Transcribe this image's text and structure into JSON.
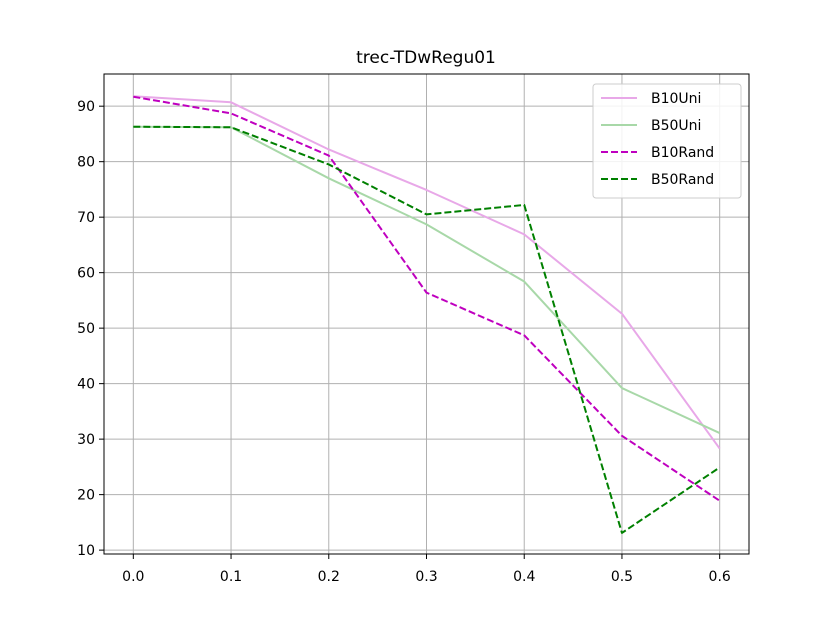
{
  "chart_data": {
    "type": "line",
    "title": "trec-TDwRegu01",
    "xlabel": "",
    "ylabel": "",
    "x": [
      0.0,
      0.1,
      0.2,
      0.3,
      0.4,
      0.5,
      0.6
    ],
    "x_tick_labels": [
      "0.0",
      "0.1",
      "0.2",
      "0.3",
      "0.4",
      "0.5",
      "0.6"
    ],
    "y_ticks": [
      10,
      20,
      30,
      40,
      50,
      60,
      70,
      80,
      90
    ],
    "y_tick_labels": [
      "10",
      "20",
      "30",
      "40",
      "50",
      "60",
      "70",
      "80",
      "90"
    ],
    "xlim": [
      -0.03,
      0.63
    ],
    "ylim": [
      9.3,
      95.8
    ],
    "grid": true,
    "legend_position": "top-right",
    "series": [
      {
        "name": "B10Uni",
        "values": [
          91.8,
          90.7,
          82.2,
          74.9,
          66.9,
          52.6,
          28.3
        ],
        "color": "#e8a8e8",
        "dash": "solid"
      },
      {
        "name": "B50Uni",
        "values": [
          86.3,
          86.2,
          77.0,
          68.7,
          58.4,
          39.2,
          31.1
        ],
        "color": "#a8d8a8",
        "dash": "solid"
      },
      {
        "name": "B10Rand",
        "values": [
          91.7,
          88.7,
          81.1,
          56.4,
          48.7,
          30.6,
          18.9
        ],
        "color": "#bf00bf",
        "dash": "dashed"
      },
      {
        "name": "B50Rand",
        "values": [
          86.3,
          86.2,
          79.5,
          70.5,
          72.2,
          13.1,
          24.9
        ],
        "color": "#008000",
        "dash": "dashed"
      }
    ]
  }
}
